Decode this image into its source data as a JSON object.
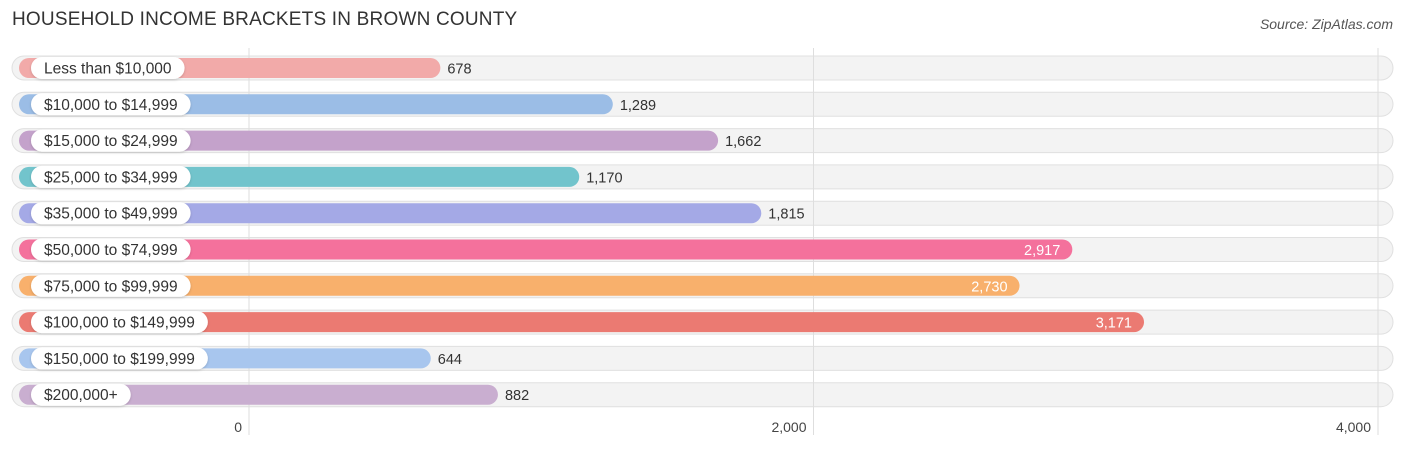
{
  "header": {
    "title": "HOUSEHOLD INCOME BRACKETS IN BROWN COUNTY",
    "source": "Source: ZipAtlas.com"
  },
  "chart_data": {
    "type": "bar",
    "orientation": "horizontal",
    "title": "HOUSEHOLD INCOME BRACKETS IN BROWN COUNTY",
    "categories": [
      "Less than $10,000",
      "$10,000 to $14,999",
      "$15,000 to $24,999",
      "$25,000 to $34,999",
      "$35,000 to $49,999",
      "$50,000 to $74,999",
      "$75,000 to $99,999",
      "$100,000 to $149,999",
      "$150,000 to $199,999",
      "$200,000+"
    ],
    "values": [
      678,
      1289,
      1662,
      1170,
      1815,
      2917,
      2730,
      3171,
      644,
      882
    ],
    "value_labels": [
      "678",
      "1,289",
      "1,662",
      "1,170",
      "1,815",
      "2,917",
      "2,730",
      "3,171",
      "644",
      "882"
    ],
    "colors": [
      "#f2aaa9",
      "#9bbde6",
      "#c4a2cb",
      "#72c4cc",
      "#a4a9e6",
      "#f4719c",
      "#f8b06c",
      "#eb7a72",
      "#a8c6ee",
      "#c9aed0"
    ],
    "xlim": [
      0,
      4000
    ],
    "xticks": [
      0,
      2000,
      4000
    ],
    "xtick_labels": [
      "0",
      "2,000",
      "4,000"
    ],
    "grid": true
  }
}
